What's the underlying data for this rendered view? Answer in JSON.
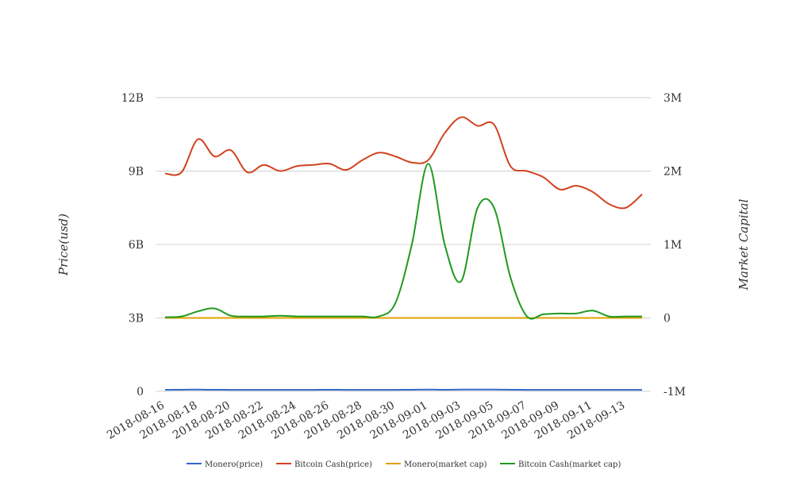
{
  "chart_data": {
    "type": "line",
    "x": [
      "2018-08-16",
      "2018-08-17",
      "2018-08-18",
      "2018-08-19",
      "2018-08-20",
      "2018-08-21",
      "2018-08-22",
      "2018-08-23",
      "2018-08-24",
      "2018-08-25",
      "2018-08-26",
      "2018-08-27",
      "2018-08-28",
      "2018-08-29",
      "2018-08-30",
      "2018-08-31",
      "2018-09-01",
      "2018-09-02",
      "2018-09-03",
      "2018-09-04",
      "2018-09-05",
      "2018-09-06",
      "2018-09-07",
      "2018-09-08",
      "2018-09-09",
      "2018-09-10",
      "2018-09-11",
      "2018-09-12",
      "2018-09-13",
      "2018-09-14"
    ],
    "x_tick_labels": [
      "2018-08-16",
      "2018-08-18",
      "2018-08-20",
      "2018-08-22",
      "2018-08-24",
      "2018-08-26",
      "2018-08-28",
      "2018-08-30",
      "2018-09-01",
      "2018-09-03",
      "2018-09-05",
      "2018-09-07",
      "2018-09-09",
      "2018-09-11",
      "2018-09-13"
    ],
    "ylabel_left": "Price(usd)",
    "ylabel_right": "Market Capital",
    "left_axis": {
      "ylim": [
        0,
        12000000000
      ],
      "ticks": [
        0,
        3000000000,
        6000000000,
        9000000000,
        12000000000
      ],
      "tick_labels": [
        "0",
        "3B",
        "6B",
        "9B",
        "12B"
      ]
    },
    "right_axis": {
      "ylim": [
        -1000000,
        3000000
      ],
      "ticks": [
        -1000000,
        0,
        1000000,
        2000000,
        3000000
      ],
      "tick_labels": [
        "-1M",
        "0",
        "1M",
        "2M",
        "3M"
      ]
    },
    "grid": true,
    "legend_position": "bottom",
    "series": [
      {
        "name": "Monero(price)",
        "axis": "left",
        "color": "#3366cc",
        "values": [
          60000000,
          65000000,
          70000000,
          65000000,
          60000000,
          60000000,
          60000000,
          60000000,
          60000000,
          60000000,
          65000000,
          60000000,
          60000000,
          60000000,
          60000000,
          65000000,
          70000000,
          65000000,
          70000000,
          70000000,
          70000000,
          65000000,
          60000000,
          60000000,
          60000000,
          60000000,
          60000000,
          60000000,
          60000000,
          60000000
        ]
      },
      {
        "name": "Bitcoin Cash(price)",
        "axis": "left",
        "color": "#d2421f",
        "values": [
          8900000000,
          8950000000,
          10300000000,
          9600000000,
          9850000000,
          8950000000,
          9250000000,
          9000000000,
          9200000000,
          9250000000,
          9300000000,
          9050000000,
          9450000000,
          9750000000,
          9600000000,
          9350000000,
          9450000000,
          10550000000,
          11200000000,
          10850000000,
          10900000000,
          9200000000,
          9000000000,
          8750000000,
          8250000000,
          8400000000,
          8150000000,
          7650000000,
          7500000000,
          8050000000
        ]
      },
      {
        "name": "Monero(market cap)",
        "axis": "right",
        "color": "#e0a100",
        "values": [
          0,
          0,
          0,
          0,
          0,
          0,
          0,
          0,
          0,
          0,
          0,
          0,
          0,
          0,
          0,
          0,
          0,
          0,
          0,
          0,
          0,
          0,
          0,
          0,
          0,
          0,
          0,
          0,
          0,
          0
        ]
      },
      {
        "name": "Bitcoin Cash(market cap)",
        "axis": "right",
        "color": "#1f9a1f",
        "values": [
          10000,
          20000,
          90000,
          130000,
          30000,
          20000,
          20000,
          30000,
          20000,
          20000,
          20000,
          20000,
          20000,
          20000,
          200000,
          1000000,
          2100000,
          1000000,
          500000,
          1500000,
          1500000,
          550000,
          20000,
          50000,
          60000,
          60000,
          100000,
          20000,
          20000,
          20000
        ]
      }
    ]
  }
}
